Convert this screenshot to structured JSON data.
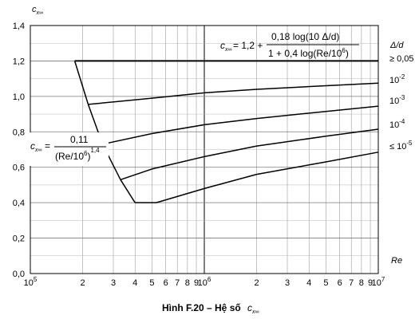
{
  "chart_data": {
    "type": "line",
    "title": "",
    "caption": "Hình F.20 – Hệ số",
    "caption_symbol": "c",
    "caption_symbol_sub": "x∞",
    "ylabel": "c",
    "ylabel_sub": "x∞",
    "xlabel": "Re",
    "x_scale": "log",
    "xlim": [
      100000,
      10000000
    ],
    "ylim": [
      0,
      1.4
    ],
    "grid": true,
    "y_ticks": [
      "0,0",
      "0,2",
      "0,4",
      "0,6",
      "0,8",
      "1,0",
      "1,2",
      "1,4"
    ],
    "x_ticks": [
      {
        "x": 100000,
        "label": "10",
        "exp": "5"
      },
      {
        "x": 200000,
        "label": "2"
      },
      {
        "x": 300000,
        "label": "3"
      },
      {
        "x": 400000,
        "label": "4"
      },
      {
        "x": 500000,
        "label": "5"
      },
      {
        "x": 600000,
        "label": "6"
      },
      {
        "x": 700000,
        "label": "7"
      },
      {
        "x": 800000,
        "label": "8"
      },
      {
        "x": 900000,
        "label": "9"
      },
      {
        "x": 1000000,
        "label": "10",
        "exp": "6"
      },
      {
        "x": 2000000,
        "label": "2"
      },
      {
        "x": 3000000,
        "label": "3"
      },
      {
        "x": 4000000,
        "label": "4"
      },
      {
        "x": 5000000,
        "label": "5"
      },
      {
        "x": 6000000,
        "label": "6"
      },
      {
        "x": 7000000,
        "label": "7"
      },
      {
        "x": 8000000,
        "label": "8"
      },
      {
        "x": 9000000,
        "label": "9"
      },
      {
        "x": 10000000,
        "label": "10",
        "exp": "7"
      }
    ],
    "legend_title": "Δ/d",
    "series": [
      {
        "name": "≥ 0,05",
        "x": [
          180000,
          10000000
        ],
        "y": [
          1.2,
          1.2
        ]
      },
      {
        "name": "10",
        "name_exp": "-2",
        "x": [
          215000,
          500000,
          1000000,
          2000000,
          5000000,
          10000000
        ],
        "y": [
          0.955,
          0.99,
          1.02,
          1.04,
          1.06,
          1.075
        ]
      },
      {
        "name": "10",
        "name_exp": "-3",
        "x": [
          260000,
          500000,
          1000000,
          2000000,
          5000000,
          10000000
        ],
        "y": [
          0.73,
          0.79,
          0.84,
          0.875,
          0.915,
          0.945
        ]
      },
      {
        "name": "10",
        "name_exp": "-4",
        "x": [
          330000,
          500000,
          1000000,
          2000000,
          5000000,
          10000000
        ],
        "y": [
          0.53,
          0.59,
          0.66,
          0.72,
          0.775,
          0.815
        ]
      },
      {
        "name": "≤ 10",
        "name_exp": "-5",
        "x": [
          400000,
          530000,
          1000000,
          2000000,
          5000000,
          10000000
        ],
        "y": [
          0.4,
          0.4,
          0.48,
          0.56,
          0.63,
          0.685
        ]
      },
      {
        "name": "",
        "x": [
          180000,
          215000,
          260000,
          330000,
          400000
        ],
        "y": [
          1.2,
          0.955,
          0.73,
          0.53,
          0.4
        ]
      }
    ],
    "annotations": {
      "formula_top": {
        "lhs": "c",
        "lhs_sub": "x∞",
        "eq": "= 1,2 +",
        "numerator": "0,18 log(10 Δ/d)",
        "denominator": "1 + 0,4 log(Re/10",
        "denominator_exp": "6",
        "denominator_end": ")"
      },
      "formula_left": {
        "lhs": "c",
        "lhs_sub": "x∞",
        "eq": "=",
        "numerator": "0,11",
        "denominator": "(Re/10",
        "denominator_exp": "6",
        "denominator_end": ")",
        "power": "1,4"
      }
    }
  }
}
